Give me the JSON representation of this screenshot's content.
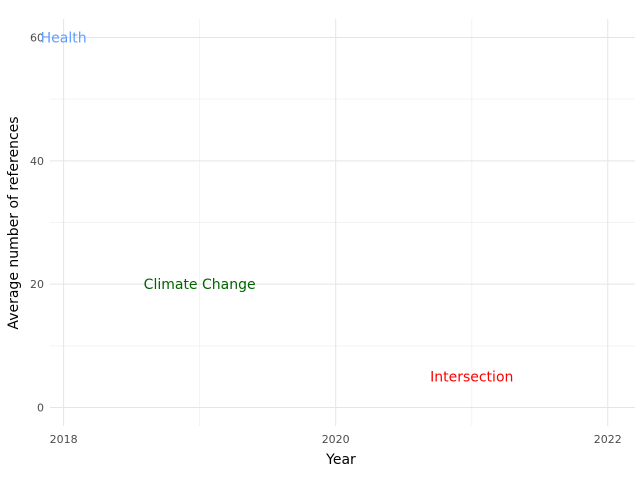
{
  "chart_data": {
    "type": "scatter",
    "title": "",
    "xlabel": "Year",
    "ylabel": "Average number of references",
    "xlim": [
      2017.9,
      2022.2
    ],
    "ylim": [
      -3,
      63
    ],
    "x_ticks": [
      2018,
      2020,
      2022
    ],
    "x_tick_labels": [
      "2018",
      "2020",
      "2022"
    ],
    "y_ticks": [
      0,
      20,
      40,
      60
    ],
    "y_tick_labels": [
      "0",
      "20",
      "40",
      "60"
    ],
    "grid": true,
    "legend": "none",
    "annotations": [
      {
        "text": "Health",
        "x": 2018,
        "y": 60,
        "color": "#619CFF"
      },
      {
        "text": "Climate Change",
        "x": 2019,
        "y": 20,
        "color": "#006400"
      },
      {
        "text": "Intersection",
        "x": 2021,
        "y": 5,
        "color": "#FF0000"
      }
    ]
  }
}
